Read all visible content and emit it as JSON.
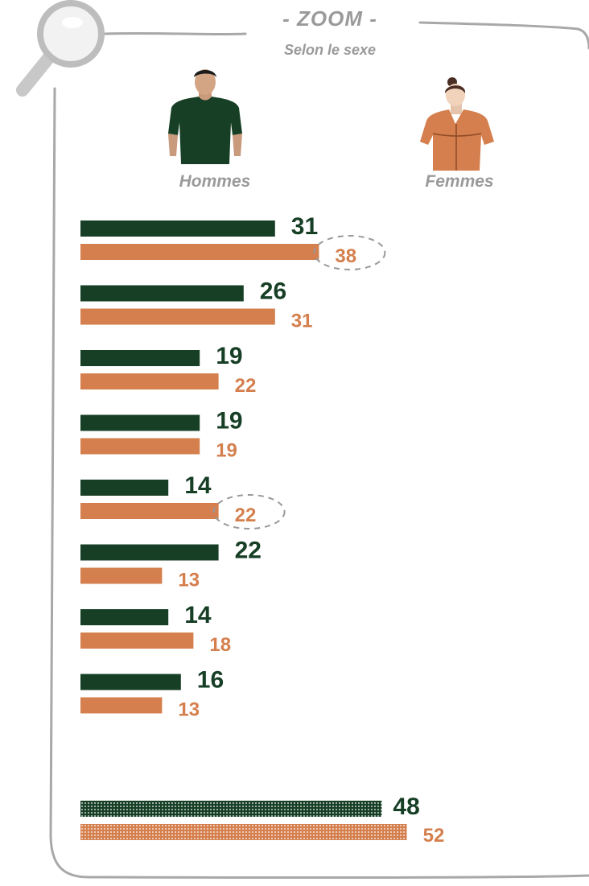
{
  "header": {
    "title": "- ZOOM -",
    "subtitle": "Selon le sexe"
  },
  "groups": {
    "men": "Hommes",
    "women": "Femmes"
  },
  "colors": {
    "men": "#173f26",
    "women": "#d47f4d",
    "frame": "#a8a8a8",
    "text_muted": "#9a9a9a"
  },
  "icons": [
    "magnifier-icon",
    "man-icon",
    "woman-icon"
  ],
  "highlighted_values": [
    {
      "row": 1,
      "series": "Femmes",
      "value": 38
    },
    {
      "row": 5,
      "series": "Femmes",
      "value": 22
    }
  ],
  "chart_data": {
    "type": "bar",
    "orientation": "horizontal",
    "xlim": [
      0,
      55
    ],
    "series": [
      {
        "name": "Hommes",
        "values": [
          31,
          26,
          19,
          19,
          14,
          22,
          14,
          16
        ]
      },
      {
        "name": "Femmes",
        "values": [
          38,
          31,
          22,
          19,
          22,
          13,
          18,
          13
        ]
      }
    ],
    "total": {
      "pattern": "dotted",
      "values": [
        {
          "series": "Hommes",
          "value": 48
        },
        {
          "series": "Femmes",
          "value": 52
        }
      ]
    }
  }
}
